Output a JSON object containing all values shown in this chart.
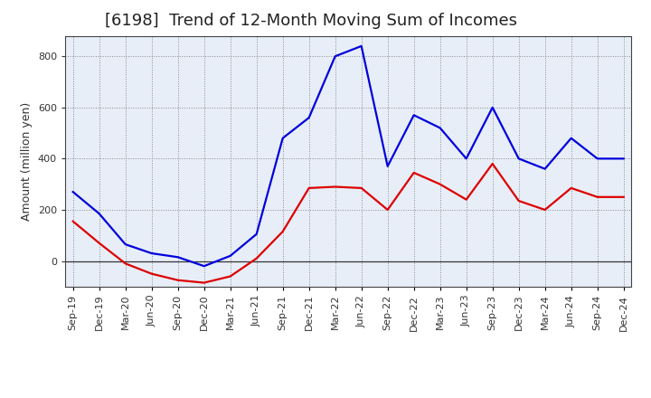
{
  "title": "[6198]  Trend of 12-Month Moving Sum of Incomes",
  "ylabel": "Amount (million yen)",
  "background_color": "#ffffff",
  "plot_bg_color": "#e8eef8",
  "grid_color": "#888888",
  "x_labels": [
    "Sep-19",
    "Dec-19",
    "Mar-20",
    "Jun-20",
    "Sep-20",
    "Dec-20",
    "Mar-21",
    "Jun-21",
    "Sep-21",
    "Dec-21",
    "Mar-22",
    "Jun-22",
    "Sep-22",
    "Dec-22",
    "Mar-23",
    "Jun-23",
    "Sep-23",
    "Dec-23",
    "Mar-24",
    "Jun-24",
    "Sep-24",
    "Dec-24"
  ],
  "ordinary_income": [
    270,
    185,
    65,
    30,
    15,
    -20,
    20,
    105,
    480,
    560,
    800,
    840,
    370,
    570,
    520,
    400,
    600,
    400,
    360,
    480,
    400,
    400
  ],
  "net_income": [
    155,
    70,
    -10,
    -50,
    -75,
    -85,
    -60,
    10,
    115,
    285,
    290,
    285,
    200,
    345,
    300,
    240,
    380,
    235,
    200,
    285,
    250,
    250
  ],
  "ordinary_color": "#0000dd",
  "net_color": "#dd0000",
  "ylim_min": -100,
  "ylim_max": 880,
  "yticks": [
    0,
    200,
    400,
    600,
    800
  ],
  "line_width": 1.6,
  "title_fontsize": 13,
  "label_fontsize": 9,
  "tick_fontsize": 8,
  "legend_fontsize": 9
}
